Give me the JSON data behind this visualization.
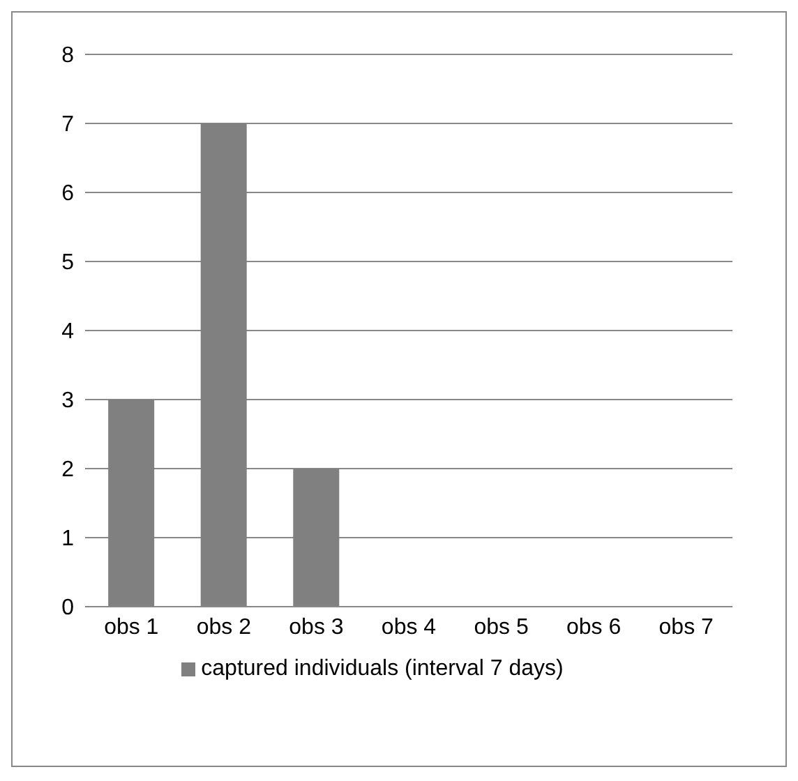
{
  "chart_data": {
    "type": "bar",
    "categories": [
      "obs 1",
      "obs 2",
      "obs 3",
      "obs 4",
      "obs 5",
      "obs 6",
      "obs 7"
    ],
    "series": [
      {
        "name": "captured individuals (interval 7 days)",
        "color": "#808080",
        "values": [
          3,
          7,
          2,
          0,
          0,
          0,
          0
        ]
      }
    ],
    "ylim": [
      0,
      8
    ],
    "yticks": [
      0,
      1,
      2,
      3,
      4,
      5,
      6,
      7,
      8
    ],
    "grid": "y",
    "legend": "bottom"
  }
}
